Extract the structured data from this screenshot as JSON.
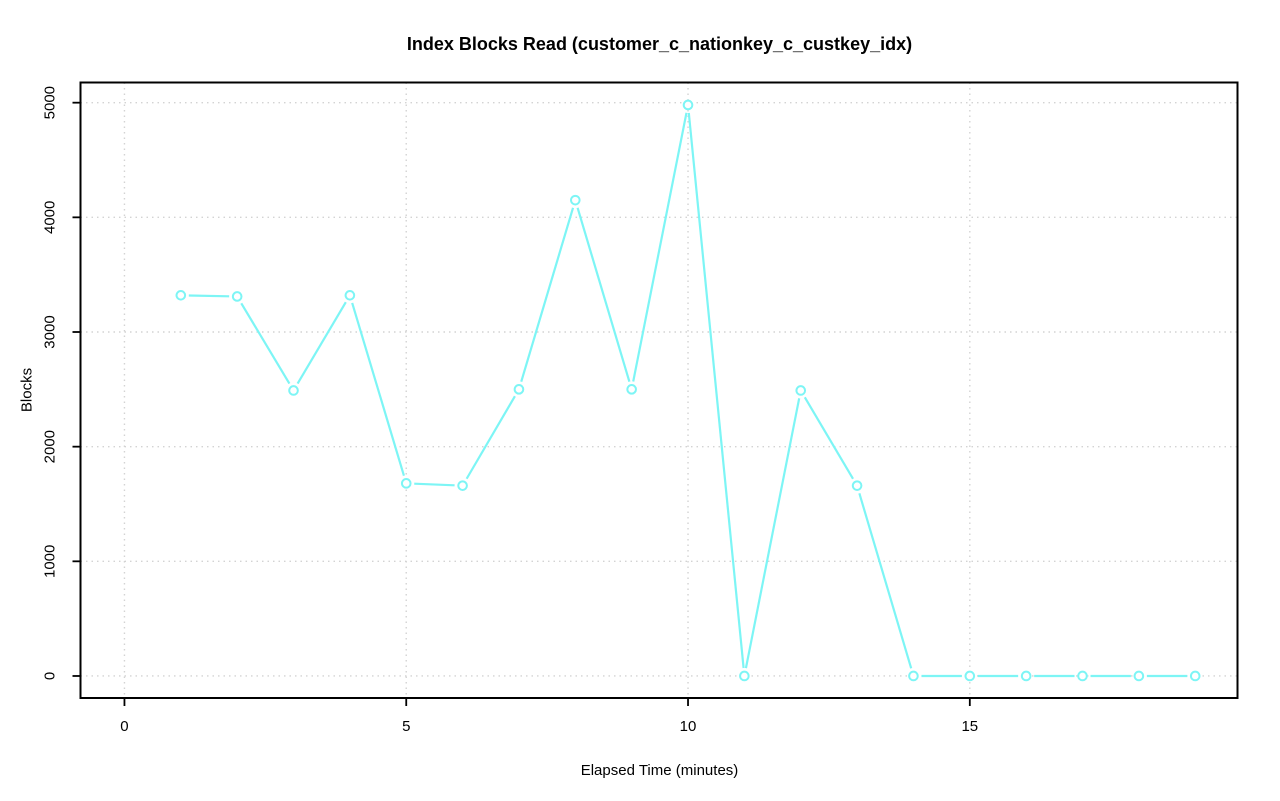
{
  "chart_data": {
    "type": "line",
    "title": "Index Blocks Read (customer_c_nationkey_c_custkey_idx)",
    "xlabel": "Elapsed Time (minutes)",
    "ylabel": "Blocks",
    "series": [
      {
        "name": "index-blocks-read",
        "x": [
          1,
          2,
          3,
          4,
          5,
          6,
          7,
          8,
          9,
          10,
          11,
          12,
          13,
          14,
          15,
          16,
          17,
          18,
          19
        ],
        "values": [
          3320,
          3310,
          2490,
          3320,
          1680,
          1660,
          2500,
          4150,
          2500,
          4980,
          0,
          2490,
          1660,
          0,
          0,
          0,
          0,
          0,
          0
        ]
      }
    ],
    "xticks": [
      0,
      5,
      10,
      15
    ],
    "yticks": [
      0,
      1000,
      2000,
      3000,
      4000,
      5000
    ],
    "xlim": [
      -0.78,
      19.75
    ],
    "ylim": [
      -192,
      5176
    ],
    "grid": true,
    "grid_style": "dotted",
    "legend_position": "none",
    "marker": "open-circle",
    "plot_type_r": "b",
    "line_color": "#7DF5F5",
    "grid_color": "#D3D3D3",
    "axis_color": "#000000",
    "background_color": "#FFFFFF"
  }
}
